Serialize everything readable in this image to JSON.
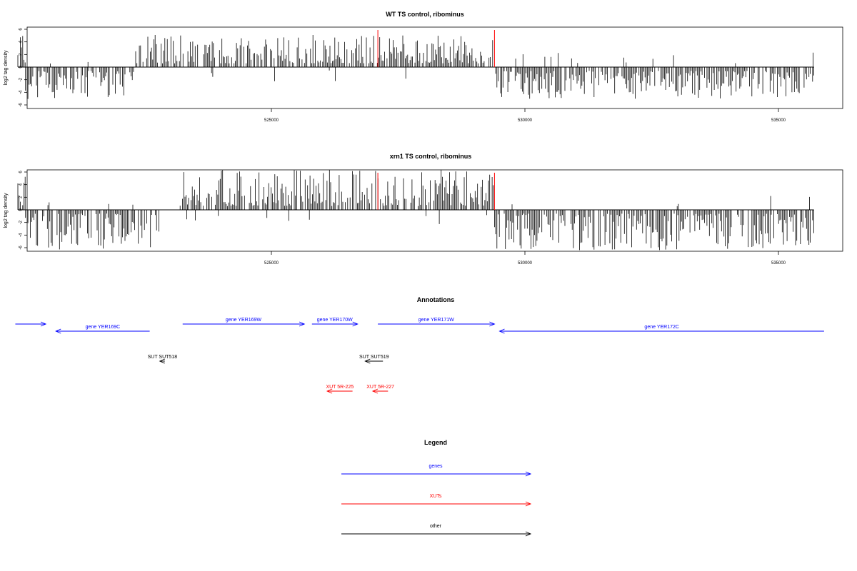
{
  "colors": {
    "genes": "#0000ff",
    "xuts": "#ff0000",
    "other": "#000000",
    "marker": "#ff0000"
  },
  "x_range": [
    520000,
    535700
  ],
  "chart_data": [
    {
      "type": "bar",
      "title": "WT TS control, ribominus",
      "ylabel": "log2 tag density",
      "ylim": [
        -6,
        6
      ],
      "yticks": [
        6,
        4,
        2,
        0,
        -2,
        -4,
        -6
      ],
      "xticks": [
        525000,
        530000,
        535000
      ],
      "markers_x": [
        527100,
        529400
      ],
      "positive_spans": [
        [
          520000,
          520150
        ],
        [
          522300,
          529400
        ]
      ],
      "negative_spans": [
        [
          520150,
          522300
        ],
        [
          529400,
          535700
        ]
      ],
      "peak_amplitude": 4.5,
      "segments_note": ""
    },
    {
      "type": "bar",
      "title": "xrn1 TS control, ribominus",
      "ylabel": "log2 tag density",
      "ylim": [
        -6,
        6
      ],
      "yticks": [
        6,
        4,
        2,
        0,
        -2,
        -4,
        -6
      ],
      "xticks": [
        525000,
        530000,
        535000
      ],
      "markers_x": [
        527100,
        529400
      ],
      "positive_spans": [
        [
          520000,
          520150
        ],
        [
          523200,
          529400
        ]
      ],
      "negative_spans": [
        [
          520150,
          522800
        ],
        [
          529400,
          535700
        ]
      ],
      "peak_amplitude": 5.8
    }
  ],
  "annotations": {
    "title": "Annotations",
    "items": [
      {
        "label": "",
        "start": 519950,
        "end": 520550,
        "dir": "+",
        "kind": "genes",
        "row": 0
      },
      {
        "label": "gene YER169C",
        "start": 520750,
        "end": 522600,
        "dir": "-",
        "kind": "genes",
        "row": 1
      },
      {
        "label": "gene YER169W",
        "start": 523250,
        "end": 525650,
        "dir": "+",
        "kind": "genes",
        "row": 0
      },
      {
        "label": "gene YER170W",
        "start": 525800,
        "end": 526700,
        "dir": "+",
        "kind": "genes",
        "row": 0
      },
      {
        "label": "gene YER171W",
        "start": 527100,
        "end": 529400,
        "dir": "+",
        "kind": "genes",
        "row": 0
      },
      {
        "label": "gene YER172C",
        "start": 529500,
        "end": 535900,
        "dir": "-",
        "kind": "genes",
        "row": 1
      },
      {
        "label": "SUT SUT518",
        "start": 522800,
        "end": 522900,
        "dir": "-",
        "kind": "other",
        "row": 2
      },
      {
        "label": "SUT SUT519",
        "start": 526850,
        "end": 527200,
        "dir": "-",
        "kind": "other",
        "row": 2
      },
      {
        "label": "XUT 5R-225",
        "start": 526100,
        "end": 526600,
        "dir": "-",
        "kind": "xuts",
        "row": 3
      },
      {
        "label": "XUT 5R-227",
        "start": 527000,
        "end": 527300,
        "dir": "-",
        "kind": "xuts",
        "row": 3
      }
    ]
  },
  "legend": {
    "title": "Legend",
    "items": [
      {
        "label": "genes",
        "kind": "genes"
      },
      {
        "label": "XUTs",
        "kind": "xuts"
      },
      {
        "label": "other",
        "kind": "other"
      }
    ]
  }
}
